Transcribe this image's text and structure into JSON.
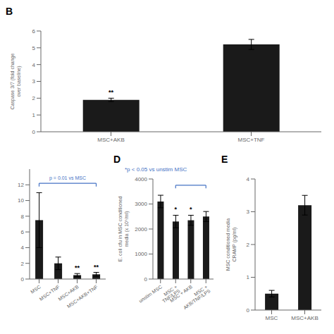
{
  "chart_data": [
    {
      "type": "bar",
      "title": "B",
      "categories": [
        "MSC+AKB",
        "MSC+TNF"
      ],
      "values": [
        1.9,
        5.2
      ],
      "errors": [
        0.1,
        0.3
      ],
      "ylabel": "Caspase 3/7 (fold change\nover baseline)",
      "ylim": [
        0,
        6
      ],
      "yticks": [
        0,
        1,
        2,
        3,
        4,
        5,
        6
      ],
      "color": "#1a1a1a",
      "annotations": [
        {
          "text": "**",
          "category": "MSC+AKB"
        }
      ]
    },
    {
      "type": "bar",
      "categories": [
        "MSC",
        "MSC+TNF",
        "MSC+AKB",
        "MSC+AKB+TNF"
      ],
      "values": [
        7.5,
        2.0,
        0.5,
        0.6
      ],
      "errors": [
        3.5,
        0.8,
        0.2,
        0.25
      ],
      "ylim": [
        0,
        14
      ],
      "yticks": [
        0,
        2,
        4,
        6,
        8,
        10,
        12
      ],
      "color": "#1a1a1a",
      "annotations": [
        {
          "text": "**",
          "category": "MSC+AKB"
        },
        {
          "text": "**",
          "category": "MSC+AKB+TNF"
        },
        {
          "text": "p = 0.01 vs MSC",
          "from": "MSC",
          "to": "MSC+AKB+TNF",
          "y": 12.2,
          "color": "#4472c4"
        }
      ]
    },
    {
      "type": "bar",
      "title": "D",
      "categories": [
        "unstim MSC",
        "MSC + TNF/LPS",
        "MSC + AKB",
        "MSC + AKB/TNF/LPS"
      ],
      "values": [
        3100,
        2300,
        2350,
        2500
      ],
      "errors": [
        250,
        250,
        200,
        200
      ],
      "ylabel": "E. coli cfu in MSC conditioned\nmedia (x 10⁵/ml)",
      "ylim": [
        0,
        4000
      ],
      "yticks": [
        0,
        1000,
        2000,
        3000,
        4000
      ],
      "color": "#1a1a1a",
      "annotations": [
        {
          "text": "*",
          "category": "MSC + TNF/LPS"
        },
        {
          "text": "*",
          "category": "MSC + AKB"
        },
        {
          "from": "MSC + TNF/LPS",
          "to": "MSC + AKB/TNF/LPS",
          "y": 3750,
          "color": "#4472c4"
        },
        {
          "text": "*p < 0.05 vs unstim MSC",
          "color": "#4472c4"
        }
      ]
    },
    {
      "type": "bar",
      "title": "E",
      "categories": [
        "MSC",
        "MSC+AKB"
      ],
      "values": [
        0.5,
        3.2
      ],
      "errors": [
        0.1,
        0.3
      ],
      "ylabel": "MSC conditioned media\nCRAMP (pg/ml)",
      "ylim": [
        0,
        4
      ],
      "yticks": [
        0,
        1,
        2,
        3,
        4
      ],
      "color": "#1a1a1a"
    }
  ]
}
